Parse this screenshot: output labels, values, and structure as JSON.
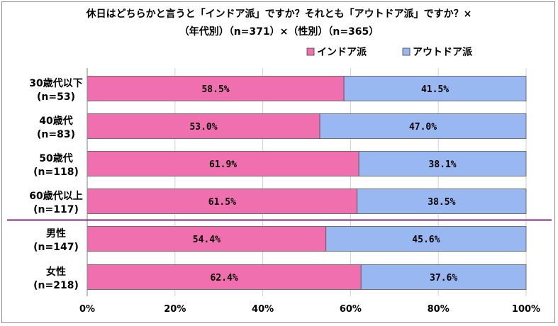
{
  "chart_data": {
    "type": "bar",
    "stacked": true,
    "orientation": "horizontal",
    "title": "休日はどちらかと言うと「インドア派」ですか？それとも「アウトドア派」ですか？×",
    "subtitle": "（年代別）（n=371）×（性別）（n=365）",
    "categories": [
      {
        "label": "30歳代以下",
        "n": "(n=53)"
      },
      {
        "label": "40歳代",
        "n": "(n=83)"
      },
      {
        "label": "50歳代",
        "n": "(n=118)"
      },
      {
        "label": "60歳代以上",
        "n": "(n=117)"
      },
      {
        "label": "男性",
        "n": "(n=147)"
      },
      {
        "label": "女性",
        "n": "(n=218)"
      }
    ],
    "series": [
      {
        "name": "インドア派",
        "color": "#f06fae",
        "values": [
          58.5,
          53.0,
          61.9,
          61.5,
          54.4,
          62.4
        ],
        "labels": [
          "58.5%",
          "53.0%",
          "61.9%",
          "61.5%",
          "54.4%",
          "62.4%"
        ]
      },
      {
        "name": "アウトドア派",
        "color": "#99b7f0",
        "values": [
          41.5,
          47.0,
          38.1,
          38.5,
          45.6,
          37.6
        ],
        "labels": [
          "41.5%",
          "47.0%",
          "38.1%",
          "38.5%",
          "45.6%",
          "37.6%"
        ]
      }
    ],
    "xlim": [
      0,
      100
    ],
    "xticks": [
      "0%",
      "20%",
      "40%",
      "60%",
      "80%",
      "100%"
    ],
    "legend_position": "top-right",
    "separator_after_category": 4,
    "separator_color": "#7b2a7f"
  }
}
